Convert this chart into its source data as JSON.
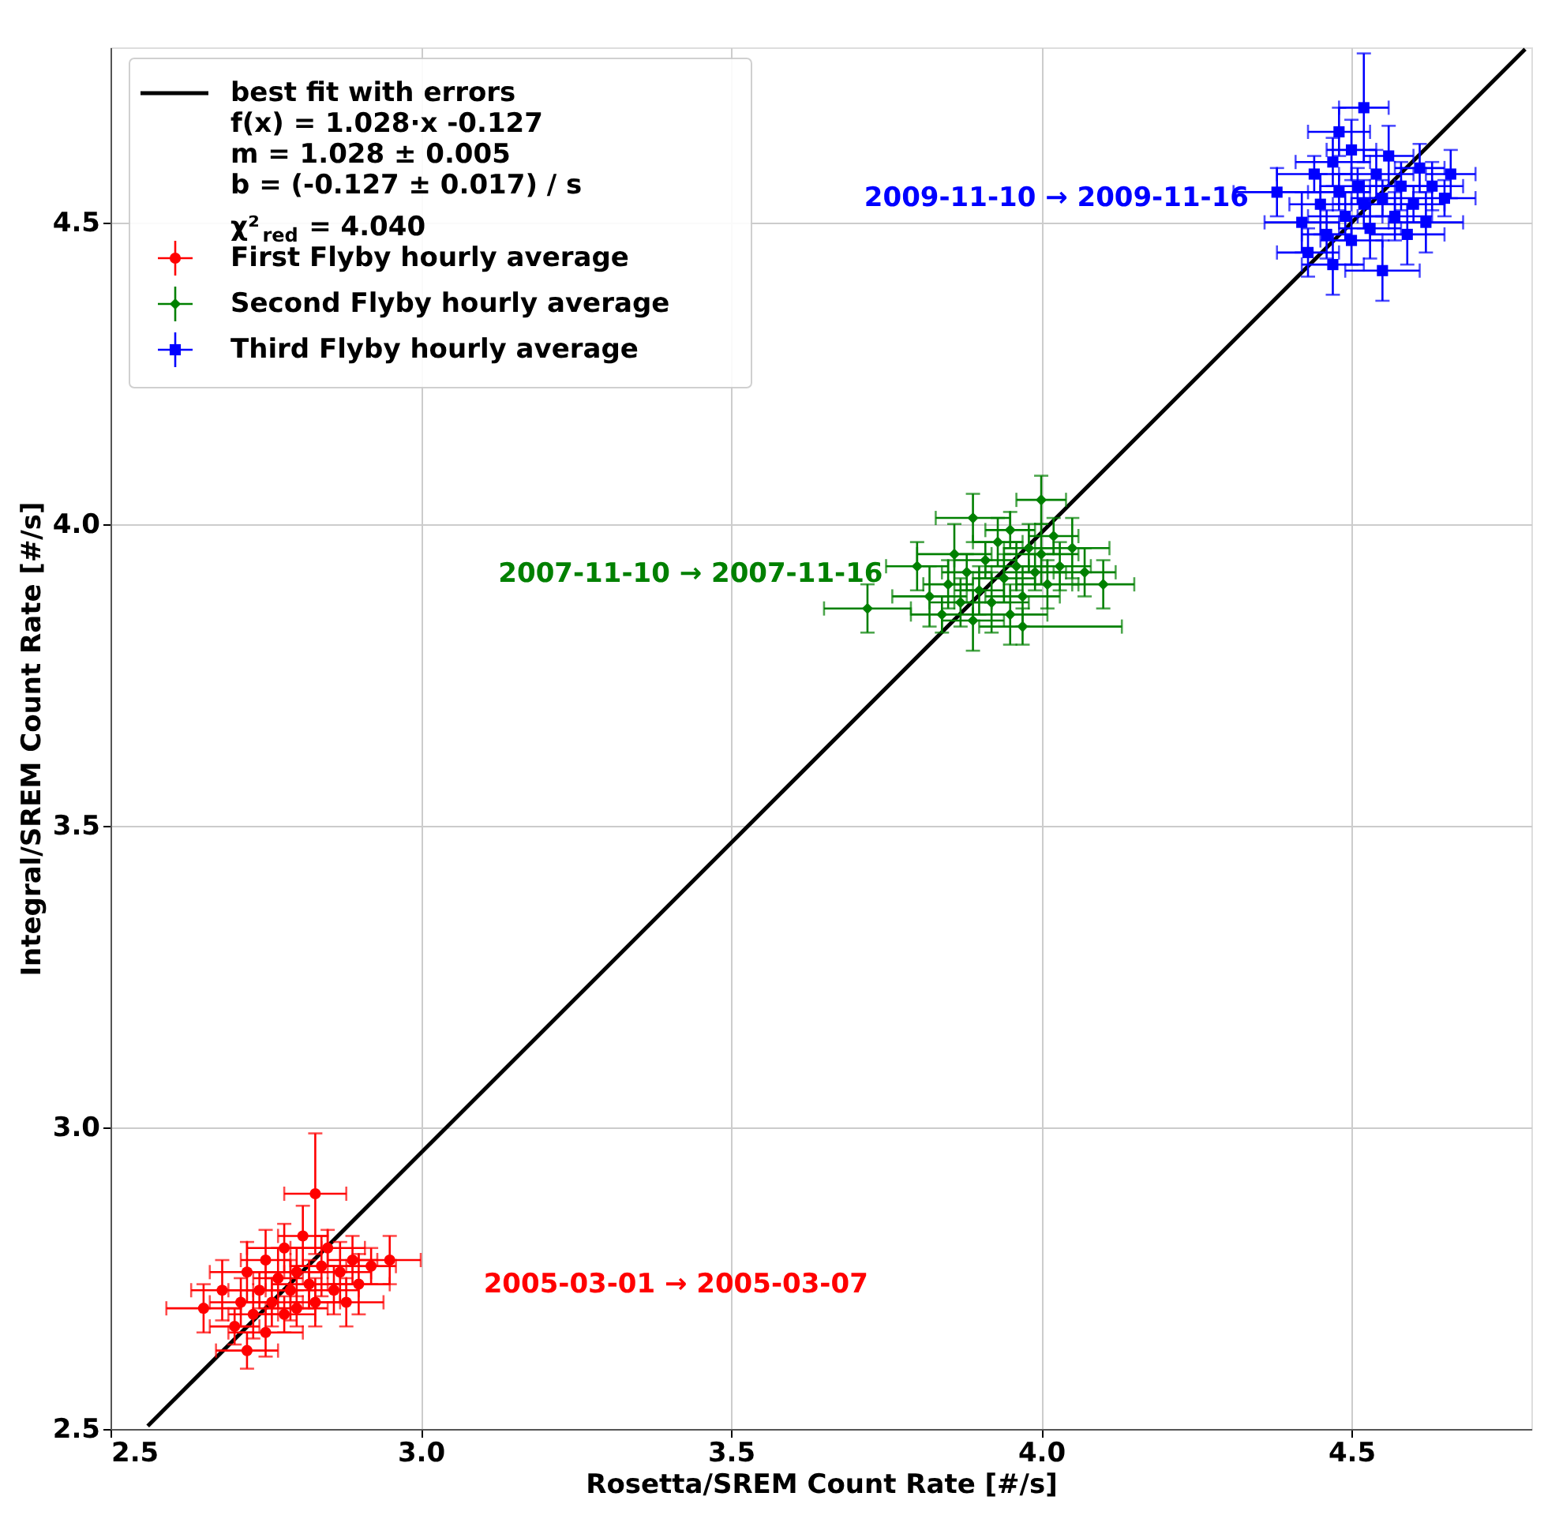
{
  "chart_data": {
    "type": "scatter",
    "xlabel": "Rosetta/SREM Count Rate [#/s]",
    "ylabel": "Integral/SREM Count Rate [#/s]",
    "xlim": [
      2.5,
      4.79
    ],
    "ylim": [
      2.5,
      4.79
    ],
    "xticks": [
      2.5,
      {
        "value": 3,
        "label": "3.0"
      },
      3.5,
      {
        "value": 4,
        "label": "4.0"
      },
      4.5
    ],
    "yticks": [
      2.5,
      {
        "value": 3,
        "label": "3.0"
      },
      3.5,
      {
        "value": 4,
        "label": "4.0"
      },
      4.5
    ],
    "grid": true,
    "legend": "top left",
    "annotations": [
      "f(x) = 1.028·x -0.127",
      "m = 1.028 ± 0.005",
      "b = (-0.127 ± 0.017) / s",
      "χ²$_{red}$ = 4.040",
      "2005-03-01 → 2005-03-07",
      "2007-11-10 → 2007-11-16",
      "2009-11-10 → 2009-11-16"
    ],
    "series": [
      {
        "name": "best fit with errors",
        "type": "line",
        "color": "#000000",
        "line_style": "solid",
        "x": [
          2.56,
          4.78
        ],
        "values": [
          2.505,
          4.787
        ]
      },
      {
        "name": "First Flyby hourly average",
        "color": "#ff0000",
        "marker": "circle",
        "x": [
          2.65,
          2.68,
          2.7,
          2.71,
          2.72,
          2.73,
          2.74,
          2.75,
          2.75,
          2.76,
          2.77,
          2.78,
          2.78,
          2.79,
          2.8,
          2.8,
          2.81,
          2.82,
          2.83,
          2.83,
          2.84,
          2.85,
          2.86,
          2.87,
          2.88,
          2.89,
          2.9,
          2.92,
          2.95,
          2.72
        ],
        "values": [
          2.7,
          2.73,
          2.67,
          2.71,
          2.76,
          2.69,
          2.73,
          2.78,
          2.66,
          2.71,
          2.75,
          2.69,
          2.8,
          2.73,
          2.76,
          2.7,
          2.82,
          2.74,
          2.89,
          2.71,
          2.77,
          2.8,
          2.73,
          2.76,
          2.71,
          2.78,
          2.74,
          2.77,
          2.78,
          2.63
        ],
        "errors": [
          0.04,
          0.05,
          0.03,
          0.04,
          0.05,
          0.04,
          0.03,
          0.05,
          0.04,
          0.04,
          0.05,
          0.03,
          0.04,
          0.05,
          0.04,
          0.03,
          0.05,
          0.04,
          0.1,
          0.04,
          0.05,
          0.03,
          0.04,
          0.05,
          0.04,
          0.04,
          0.05,
          0.03,
          0.04,
          0.03
        ],
        "xerrors": [
          0.06,
          0.05,
          0.04,
          0.05,
          0.06,
          0.04,
          0.05,
          0.04,
          0.06,
          0.05,
          0.04,
          0.05,
          0.06,
          0.04,
          0.05,
          0.05,
          0.04,
          0.06,
          0.05,
          0.04,
          0.05,
          0.06,
          0.04,
          0.05,
          0.06,
          0.04,
          0.05,
          0.04,
          0.05,
          0.05
        ]
      },
      {
        "name": "Second Flyby hourly average",
        "color": "#008000",
        "marker": "diamond",
        "x": [
          3.72,
          3.8,
          3.82,
          3.84,
          3.85,
          3.86,
          3.87,
          3.88,
          3.89,
          3.89,
          3.9,
          3.91,
          3.92,
          3.93,
          3.94,
          3.95,
          3.95,
          3.96,
          3.97,
          3.98,
          3.99,
          4.0,
          4.0,
          4.01,
          4.02,
          4.03,
          4.05,
          4.07,
          4.1,
          3.97
        ],
        "values": [
          3.86,
          3.93,
          3.88,
          3.85,
          3.9,
          3.95,
          3.87,
          3.92,
          4.01,
          3.84,
          3.89,
          3.94,
          3.87,
          3.97,
          3.91,
          3.85,
          3.99,
          3.93,
          3.88,
          3.96,
          3.92,
          4.04,
          3.95,
          3.9,
          3.98,
          3.93,
          3.96,
          3.92,
          3.9,
          3.83
        ],
        "errors": [
          0.04,
          0.04,
          0.05,
          0.03,
          0.04,
          0.05,
          0.04,
          0.03,
          0.04,
          0.05,
          0.04,
          0.03,
          0.05,
          0.04,
          0.04,
          0.05,
          0.03,
          0.04,
          0.05,
          0.04,
          0.03,
          0.04,
          0.05,
          0.04,
          0.03,
          0.04,
          0.05,
          0.04,
          0.04,
          0.03
        ],
        "xerrors": [
          0.07,
          0.05,
          0.06,
          0.05,
          0.04,
          0.06,
          0.05,
          0.04,
          0.06,
          0.05,
          0.04,
          0.05,
          0.06,
          0.04,
          0.05,
          0.06,
          0.04,
          0.05,
          0.06,
          0.04,
          0.05,
          0.04,
          0.06,
          0.05,
          0.04,
          0.05,
          0.06,
          0.05,
          0.05,
          [
            3.9,
            4.13
          ]
        ]
      },
      {
        "name": "Third Flyby hourly average",
        "color": "#0000ff",
        "marker": "square",
        "x": [
          4.38,
          4.42,
          4.43,
          4.44,
          4.45,
          4.46,
          4.47,
          4.47,
          4.48,
          4.49,
          4.5,
          4.5,
          4.51,
          4.52,
          4.52,
          4.53,
          4.54,
          4.55,
          4.56,
          4.57,
          4.58,
          4.59,
          4.6,
          4.61,
          4.62,
          4.63,
          4.65,
          4.66,
          4.55,
          4.48
        ],
        "values": [
          4.55,
          4.5,
          4.45,
          4.58,
          4.53,
          4.48,
          4.6,
          4.43,
          4.55,
          4.51,
          4.62,
          4.47,
          4.56,
          4.53,
          4.69,
          4.49,
          4.58,
          4.54,
          4.61,
          4.51,
          4.56,
          4.48,
          4.53,
          4.59,
          4.5,
          4.56,
          4.54,
          4.58,
          4.42,
          4.65
        ],
        "errors": [
          0.04,
          0.05,
          0.04,
          0.03,
          0.05,
          0.04,
          0.04,
          0.05,
          0.03,
          0.04,
          0.05,
          0.04,
          0.03,
          0.04,
          0.09,
          0.05,
          0.04,
          0.03,
          0.05,
          0.04,
          0.04,
          0.05,
          0.03,
          0.04,
          0.05,
          0.04,
          0.03,
          0.04,
          0.05,
          0.04
        ],
        "xerrors": [
          0.07,
          0.06,
          0.05,
          0.06,
          0.05,
          0.04,
          0.06,
          0.05,
          0.05,
          0.06,
          0.04,
          0.05,
          0.06,
          0.05,
          0.04,
          0.05,
          0.06,
          0.05,
          0.04,
          0.06,
          0.05,
          0.06,
          0.05,
          0.04,
          0.06,
          0.05,
          0.05,
          0.04,
          0.06,
          0.05
        ]
      }
    ]
  }
}
